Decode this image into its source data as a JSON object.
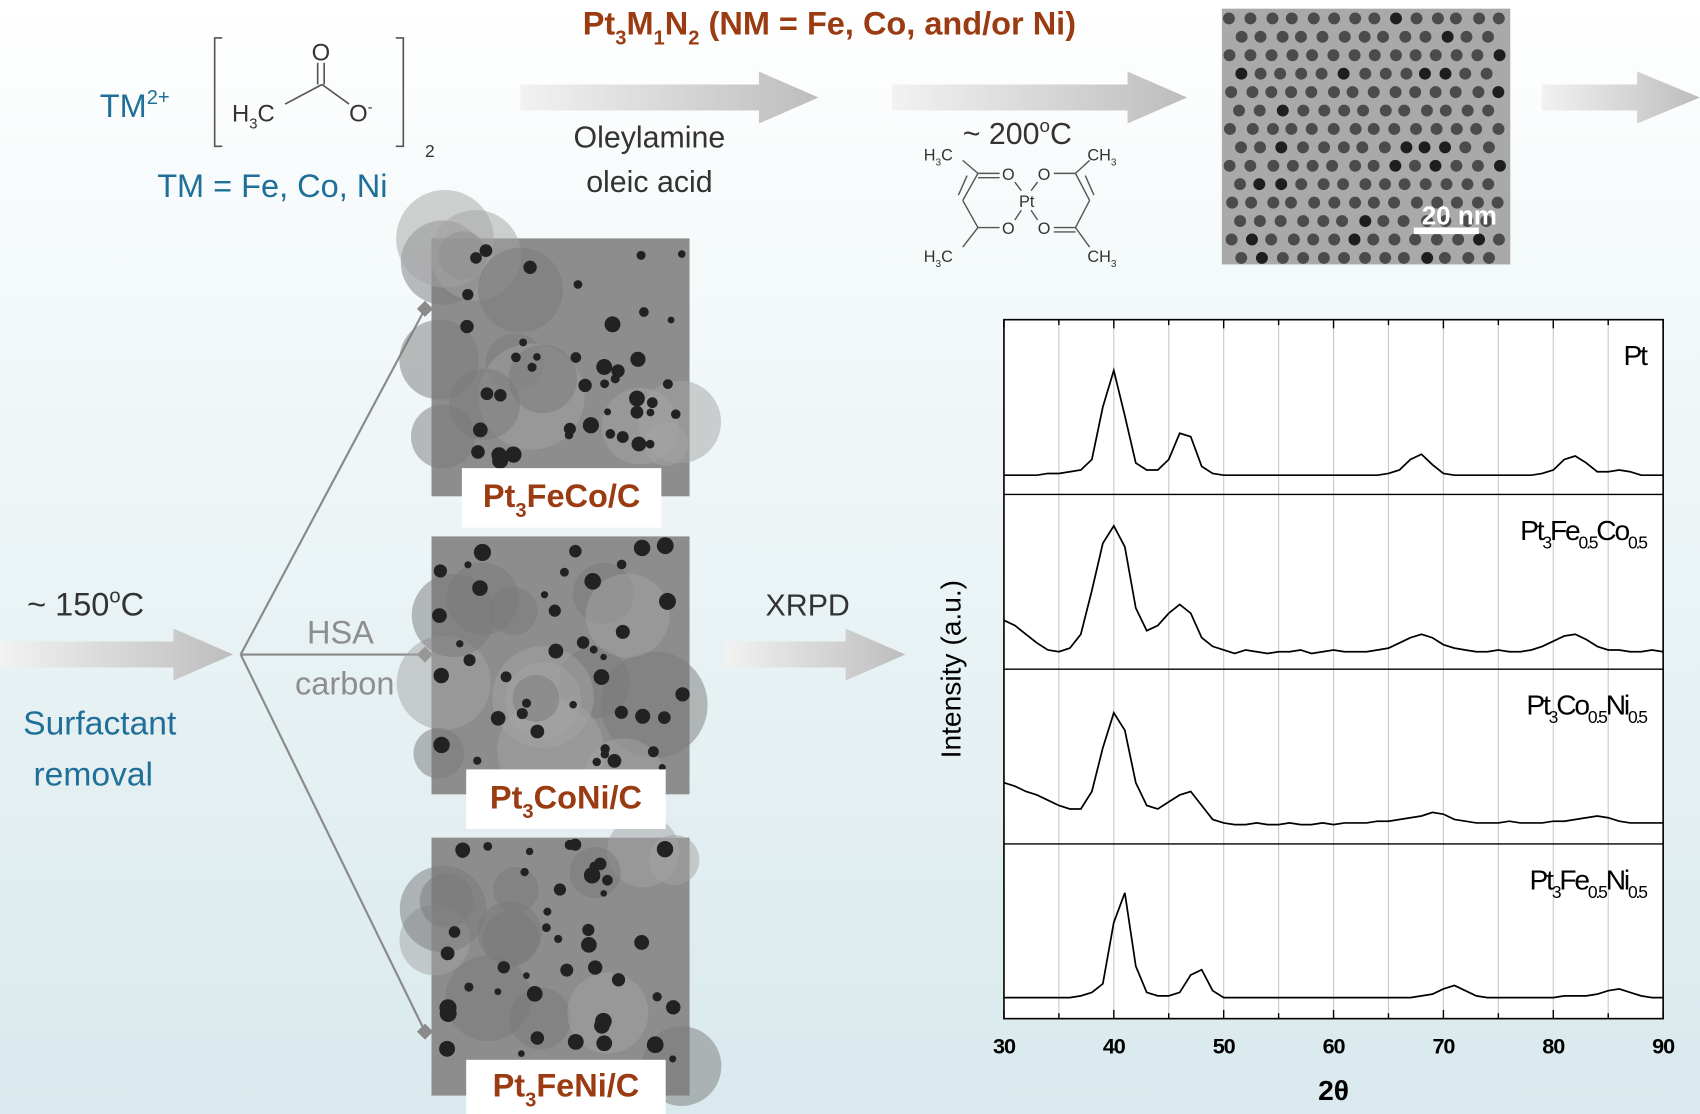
{
  "heading": [
    "Pt",
    "3",
    "M",
    "1",
    "N",
    "2",
    " (NM = Fe, Co, and/or Ni)"
  ],
  "precursor": {
    "cation": [
      "TM",
      "2+"
    ],
    "cation_note": "TM = Fe, Co, Ni",
    "methyl": [
      "H",
      "3",
      "C"
    ],
    "carbonyl_oxygen": "O",
    "anion_oxygen": [
      "O",
      "-"
    ],
    "count": "2"
  },
  "solvents": [
    "Oleylamine",
    "oleic acid"
  ],
  "pt_acac": {
    "temperature": [
      "~ 200",
      "o",
      "C"
    ],
    "methyl_left": [
      [
        "H",
        "3",
        "C"
      ],
      [
        "H",
        "3",
        "C"
      ]
    ],
    "methyl_right": [
      [
        "CH",
        "3"
      ],
      [
        "CH",
        "3"
      ]
    ],
    "oxygens": [
      "O",
      "O",
      "O",
      "O"
    ],
    "metal": "Pt"
  },
  "tem_scale": "20 nm",
  "annealing": {
    "temperature": [
      "~ 150",
      "o",
      "C"
    ],
    "step": [
      "Surfactant",
      "removal"
    ]
  },
  "support": [
    "HSA",
    "carbon"
  ],
  "catalysts": [
    [
      "Pt",
      "3",
      "FeCo/C"
    ],
    [
      "Pt",
      "3",
      "CoNi/C"
    ],
    [
      "Pt",
      "3",
      "FeNi/C"
    ]
  ],
  "xrpd": "XRPD",
  "chart_data": {
    "type": "line",
    "xlabel": "2θ",
    "ylabel": "Intensity (a.u.)",
    "x": [
      30,
      31,
      32,
      33,
      34,
      35,
      36,
      37,
      38,
      39,
      40,
      41,
      42,
      43,
      44,
      45,
      46,
      47,
      48,
      49,
      50,
      51,
      52,
      53,
      54,
      55,
      56,
      57,
      58,
      59,
      60,
      61,
      62,
      63,
      64,
      65,
      66,
      67,
      68,
      69,
      70,
      71,
      72,
      73,
      74,
      75,
      76,
      77,
      78,
      79,
      80,
      81,
      82,
      83,
      84,
      85,
      86,
      87,
      88,
      89,
      90
    ],
    "xlim": [
      30,
      90
    ],
    "xticks": [
      30,
      40,
      50,
      60,
      70,
      80,
      90
    ],
    "xminorticks": [
      35,
      45,
      55,
      65,
      75,
      85
    ],
    "ylim": [
      0,
      1
    ],
    "grid": true,
    "series": [
      {
        "name": [
          "Pt"
        ],
        "color": "#000000",
        "values": [
          0.11,
          0.11,
          0.11,
          0.11,
          0.12,
          0.12,
          0.13,
          0.14,
          0.2,
          0.5,
          0.71,
          0.45,
          0.18,
          0.14,
          0.14,
          0.2,
          0.35,
          0.33,
          0.16,
          0.12,
          0.11,
          0.11,
          0.11,
          0.11,
          0.11,
          0.11,
          0.11,
          0.11,
          0.11,
          0.11,
          0.11,
          0.11,
          0.11,
          0.11,
          0.11,
          0.12,
          0.14,
          0.2,
          0.23,
          0.17,
          0.12,
          0.11,
          0.11,
          0.11,
          0.11,
          0.11,
          0.11,
          0.11,
          0.11,
          0.12,
          0.14,
          0.2,
          0.22,
          0.18,
          0.13,
          0.13,
          0.14,
          0.13,
          0.11,
          0.11,
          0.11
        ]
      },
      {
        "name": [
          "Pt",
          "3",
          "Fe",
          "0.5",
          "Co",
          "0.5"
        ],
        "color": "#000000",
        "values": [
          0.28,
          0.25,
          0.2,
          0.15,
          0.11,
          0.1,
          0.12,
          0.2,
          0.45,
          0.72,
          0.82,
          0.7,
          0.35,
          0.22,
          0.25,
          0.32,
          0.37,
          0.32,
          0.18,
          0.13,
          0.11,
          0.09,
          0.11,
          0.1,
          0.09,
          0.1,
          0.1,
          0.11,
          0.09,
          0.1,
          0.11,
          0.1,
          0.1,
          0.1,
          0.11,
          0.12,
          0.15,
          0.18,
          0.2,
          0.18,
          0.14,
          0.12,
          0.11,
          0.1,
          0.1,
          0.11,
          0.1,
          0.1,
          0.11,
          0.13,
          0.16,
          0.19,
          0.2,
          0.17,
          0.13,
          0.11,
          0.11,
          0.1,
          0.1,
          0.11,
          0.1
        ]
      },
      {
        "name": [
          "Pt",
          "3",
          "Co",
          "0.5",
          "Ni",
          "0.5"
        ],
        "color": "#000000",
        "values": [
          0.35,
          0.33,
          0.3,
          0.28,
          0.25,
          0.22,
          0.2,
          0.2,
          0.3,
          0.55,
          0.75,
          0.65,
          0.35,
          0.22,
          0.2,
          0.24,
          0.28,
          0.3,
          0.22,
          0.14,
          0.12,
          0.11,
          0.11,
          0.12,
          0.11,
          0.11,
          0.12,
          0.11,
          0.11,
          0.12,
          0.11,
          0.12,
          0.12,
          0.12,
          0.13,
          0.13,
          0.14,
          0.15,
          0.16,
          0.18,
          0.17,
          0.14,
          0.13,
          0.12,
          0.12,
          0.12,
          0.13,
          0.12,
          0.12,
          0.12,
          0.13,
          0.13,
          0.14,
          0.15,
          0.16,
          0.15,
          0.13,
          0.12,
          0.12,
          0.12,
          0.12
        ]
      },
      {
        "name": [
          "Pt",
          "3",
          "Fe",
          "0.5",
          "Ni",
          "0.5"
        ],
        "color": "#000000",
        "values": [
          0.12,
          0.12,
          0.12,
          0.12,
          0.12,
          0.12,
          0.12,
          0.13,
          0.15,
          0.2,
          0.55,
          0.72,
          0.3,
          0.15,
          0.13,
          0.13,
          0.15,
          0.25,
          0.28,
          0.16,
          0.12,
          0.12,
          0.12,
          0.12,
          0.12,
          0.12,
          0.12,
          0.12,
          0.12,
          0.12,
          0.12,
          0.12,
          0.12,
          0.12,
          0.12,
          0.12,
          0.12,
          0.12,
          0.13,
          0.14,
          0.17,
          0.19,
          0.16,
          0.13,
          0.12,
          0.12,
          0.12,
          0.12,
          0.12,
          0.12,
          0.12,
          0.13,
          0.13,
          0.13,
          0.14,
          0.16,
          0.17,
          0.15,
          0.13,
          0.12,
          0.12
        ]
      }
    ]
  }
}
